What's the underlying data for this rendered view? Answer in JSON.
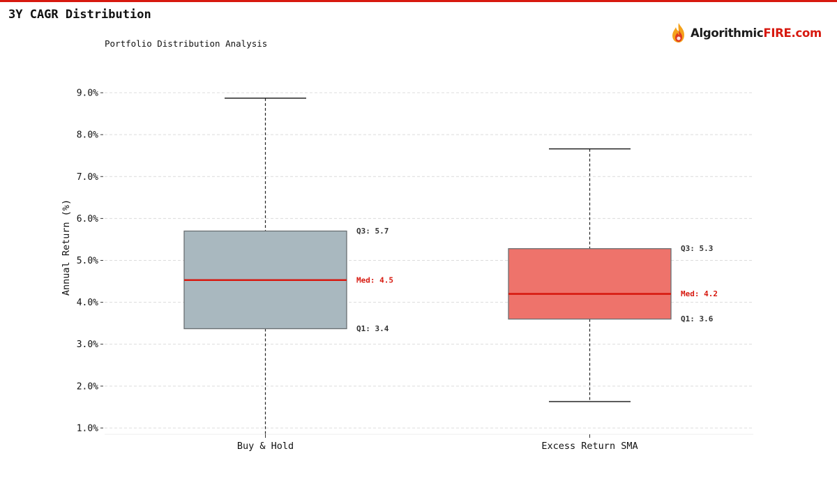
{
  "page": {
    "title": "3Y CAGR Distribution",
    "brand_dark": "Algorithmic",
    "brand_accent": "FIRE.com",
    "accent_color": "#d7190f"
  },
  "chart_data": {
    "type": "box",
    "subtitle": "Portfolio Distribution Analysis",
    "ylabel": "Annual Return (%)",
    "xlabel": "",
    "ylim": [
      0.85,
      9.15
    ],
    "yticks": [
      1.0,
      2.0,
      3.0,
      4.0,
      5.0,
      6.0,
      7.0,
      8.0,
      9.0
    ],
    "ytick_format": "%",
    "grid": true,
    "median_color": "#d7190f",
    "series": [
      {
        "name": "Buy & Hold",
        "whisker_low": 0.85,
        "q1": 3.37,
        "median": 4.53,
        "q3": 5.7,
        "whisker_high": 8.87,
        "fill": "#a9b8bf",
        "q3_label": "Q3: 5.7",
        "median_label": "Med: 4.5",
        "q1_label": "Q1: 3.4"
      },
      {
        "name": "Excess Return SMA",
        "whisker_low": 1.63,
        "q1": 3.6,
        "median": 4.2,
        "q3": 5.28,
        "whisker_high": 7.66,
        "fill": "#ee736b",
        "q3_label": "Q3: 5.3",
        "median_label": "Med: 4.2",
        "q1_label": "Q1: 3.6"
      }
    ]
  }
}
